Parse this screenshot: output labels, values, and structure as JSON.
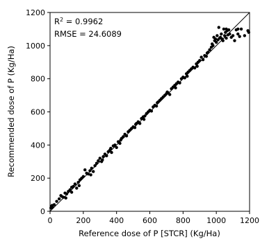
{
  "chart_data": {
    "type": "scatter",
    "title": "",
    "xlabel": "Reference dose of P [STCR] (Kg/Ha)",
    "ylabel": "Recommended dose of P (Kg/Ha)",
    "xlim": [
      0,
      1200
    ],
    "ylim": [
      0,
      1200
    ],
    "xticks": [
      "0",
      "200",
      "400",
      "600",
      "800",
      "1000",
      "1200"
    ],
    "yticks": [
      "0",
      "200",
      "400",
      "600",
      "800",
      "1000",
      "1200"
    ],
    "grid": false,
    "legend": "none",
    "annotation": {
      "r2_label": "R",
      "r2_sup": "2",
      "r2_value": " = 0.9962",
      "rmse_text": "RMSE = 24.6089"
    },
    "reference_line": {
      "x": [
        0,
        1200
      ],
      "y": [
        0,
        1200
      ]
    },
    "point_color": "#000000",
    "points": [
      [
        5,
        20
      ],
      [
        8,
        30
      ],
      [
        12,
        35
      ],
      [
        15,
        25
      ],
      [
        25,
        40
      ],
      [
        40,
        60
      ],
      [
        55,
        75
      ],
      [
        70,
        90
      ],
      [
        80,
        85
      ],
      [
        90,
        110
      ],
      [
        100,
        105
      ],
      [
        110,
        120
      ],
      [
        120,
        130
      ],
      [
        130,
        145
      ],
      [
        140,
        150
      ],
      [
        150,
        165
      ],
      [
        160,
        140
      ],
      [
        170,
        175
      ],
      [
        180,
        190
      ],
      [
        190,
        200
      ],
      [
        200,
        210
      ],
      [
        210,
        250
      ],
      [
        220,
        230
      ],
      [
        230,
        225
      ],
      [
        240,
        245
      ],
      [
        250,
        260
      ],
      [
        260,
        240
      ],
      [
        270,
        275
      ],
      [
        280,
        290
      ],
      [
        290,
        305
      ],
      [
        300,
        320
      ],
      [
        310,
        300
      ],
      [
        320,
        330
      ],
      [
        330,
        345
      ],
      [
        340,
        335
      ],
      [
        350,
        360
      ],
      [
        360,
        370
      ],
      [
        370,
        355
      ],
      [
        380,
        395
      ],
      [
        390,
        400
      ],
      [
        400,
        385
      ],
      [
        410,
        420
      ],
      [
        420,
        410
      ],
      [
        430,
        440
      ],
      [
        440,
        450
      ],
      [
        450,
        465
      ],
      [
        460,
        455
      ],
      [
        470,
        480
      ],
      [
        480,
        490
      ],
      [
        490,
        500
      ],
      [
        500,
        510
      ],
      [
        510,
        505
      ],
      [
        520,
        530
      ],
      [
        530,
        540
      ],
      [
        540,
        530
      ],
      [
        550,
        560
      ],
      [
        560,
        570
      ],
      [
        570,
        575
      ],
      [
        580,
        590
      ],
      [
        590,
        600
      ],
      [
        600,
        610
      ],
      [
        610,
        605
      ],
      [
        620,
        630
      ],
      [
        630,
        640
      ],
      [
        640,
        635
      ],
      [
        650,
        660
      ],
      [
        660,
        670
      ],
      [
        670,
        680
      ],
      [
        680,
        690
      ],
      [
        690,
        700
      ],
      [
        700,
        710
      ],
      [
        710,
        715
      ],
      [
        720,
        705
      ],
      [
        730,
        740
      ],
      [
        740,
        750
      ],
      [
        750,
        760
      ],
      [
        760,
        770
      ],
      [
        770,
        780
      ],
      [
        780,
        775
      ],
      [
        790,
        800
      ],
      [
        800,
        810
      ],
      [
        810,
        805
      ],
      [
        820,
        830
      ],
      [
        830,
        840
      ],
      [
        840,
        850
      ],
      [
        850,
        860
      ],
      [
        860,
        870
      ],
      [
        870,
        865
      ],
      [
        880,
        890
      ],
      [
        890,
        900
      ],
      [
        900,
        910
      ],
      [
        910,
        930
      ],
      [
        920,
        915
      ],
      [
        930,
        940
      ],
      [
        940,
        935
      ],
      [
        950,
        960
      ],
      [
        960,
        975
      ],
      [
        970,
        990
      ],
      [
        975,
        1010
      ],
      [
        980,
        1000
      ],
      [
        985,
        1050
      ],
      [
        990,
        1030
      ],
      [
        995,
        1040
      ],
      [
        1000,
        1020
      ],
      [
        1005,
        1060
      ],
      [
        1010,
        1035
      ],
      [
        1015,
        1110
      ],
      [
        1020,
        1045
      ],
      [
        1025,
        1050
      ],
      [
        1030,
        1070
      ],
      [
        1035,
        1040
      ],
      [
        1040,
        1030
      ],
      [
        1045,
        1100
      ],
      [
        1050,
        1060
      ],
      [
        1055,
        1080
      ],
      [
        1060,
        1045
      ],
      [
        1065,
        1090
      ],
      [
        1070,
        1065
      ],
      [
        1080,
        1070
      ],
      [
        1090,
        1050
      ],
      [
        1100,
        1060
      ],
      [
        1110,
        1030
      ],
      [
        1120,
        1095
      ],
      [
        1130,
        1070
      ],
      [
        1140,
        1055
      ],
      [
        1150,
        1100
      ],
      [
        1170,
        1060
      ],
      [
        1190,
        1090
      ],
      [
        1195,
        1080
      ],
      [
        65,
        95
      ],
      [
        95,
        80
      ],
      [
        130,
        115
      ],
      [
        175,
        155
      ],
      [
        245,
        220
      ],
      [
        315,
        310
      ],
      [
        365,
        380
      ],
      [
        425,
        430
      ],
      [
        515,
        525
      ],
      [
        565,
        555
      ],
      [
        645,
        655
      ],
      [
        705,
        720
      ],
      [
        755,
        745
      ],
      [
        825,
        815
      ],
      [
        885,
        875
      ],
      [
        945,
        955
      ],
      [
        1060,
        1100
      ],
      [
        1075,
        1095
      ],
      [
        1130,
        1100
      ]
    ]
  }
}
